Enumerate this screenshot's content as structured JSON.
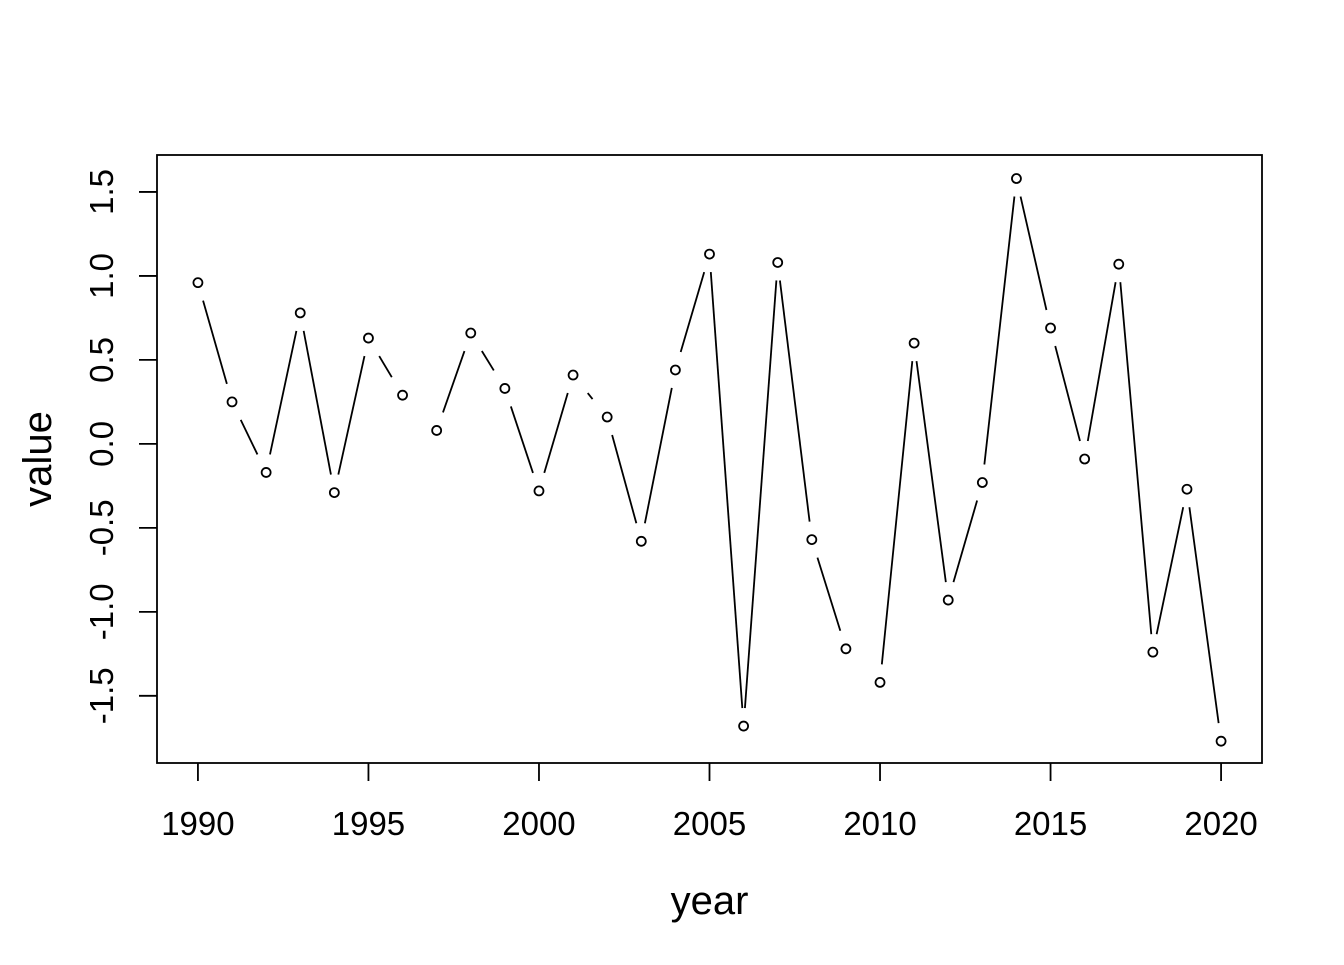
{
  "chart_data": {
    "type": "line",
    "subtype": "r-base-plot-type-b",
    "marker": "open-circle",
    "title": "",
    "xlabel": "year",
    "ylabel": "value",
    "x": [
      1990,
      1991,
      1992,
      1993,
      1994,
      1995,
      1996,
      1997,
      1998,
      1999,
      2000,
      2001,
      2002,
      2003,
      2004,
      2005,
      2006,
      2007,
      2008,
      2009,
      2010,
      2011,
      2012,
      2013,
      2014,
      2015,
      2016,
      2017,
      2018,
      2019,
      2020
    ],
    "series": [
      {
        "name": "value",
        "values": [
          0.96,
          0.25,
          -0.17,
          0.78,
          -0.29,
          0.63,
          0.29,
          0.08,
          0.66,
          0.33,
          -0.28,
          0.41,
          0.16,
          -0.58,
          0.44,
          1.13,
          -1.68,
          1.08,
          -0.57,
          -1.22,
          -1.42,
          0.6,
          -0.93,
          -0.23,
          1.58,
          0.69,
          -0.09,
          1.07,
          -1.24,
          -0.27,
          -1.77
        ]
      }
    ],
    "x_ticks": [
      1990,
      1995,
      2000,
      2005,
      2010,
      2015,
      2020
    ],
    "x_tick_labels": [
      "1990",
      "1995",
      "2000",
      "2005",
      "2010",
      "2015",
      "2020"
    ],
    "y_ticks": [
      -1.5,
      -1.0,
      -0.5,
      0.0,
      0.5,
      1.0,
      1.5
    ],
    "y_tick_labels": [
      "-1.5",
      "-1.0",
      "-0.5",
      "0.0",
      "0.5",
      "1.0",
      "1.5"
    ],
    "xlim": [
      1988.8,
      2021.2
    ],
    "ylim": [
      -1.9,
      1.72
    ],
    "grid": false,
    "legend": null,
    "colors": {
      "foreground": "#000000",
      "background": "#ffffff"
    }
  }
}
